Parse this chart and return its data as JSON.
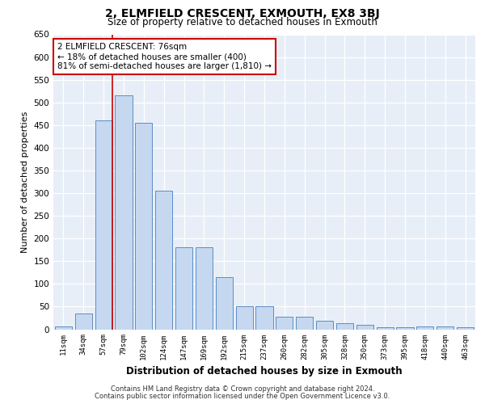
{
  "title": "2, ELMFIELD CRESCENT, EXMOUTH, EX8 3BJ",
  "subtitle": "Size of property relative to detached houses in Exmouth",
  "xlabel": "Distribution of detached houses by size in Exmouth",
  "ylabel": "Number of detached properties",
  "bar_color": "#c5d8f0",
  "bar_edge_color": "#5b8ec4",
  "background_color": "#e8eef7",
  "categories": [
    "11sqm",
    "34sqm",
    "57sqm",
    "79sqm",
    "102sqm",
    "124sqm",
    "147sqm",
    "169sqm",
    "192sqm",
    "215sqm",
    "237sqm",
    "260sqm",
    "282sqm",
    "305sqm",
    "328sqm",
    "350sqm",
    "373sqm",
    "395sqm",
    "418sqm",
    "440sqm",
    "463sqm"
  ],
  "values": [
    7,
    35,
    460,
    515,
    455,
    305,
    180,
    180,
    115,
    50,
    50,
    27,
    27,
    18,
    13,
    9,
    4,
    4,
    7,
    7,
    4
  ],
  "annotation_text": "2 ELMFIELD CRESCENT: 76sqm\n← 18% of detached houses are smaller (400)\n81% of semi-detached houses are larger (1,810) →",
  "annotation_box_color": "#ffffff",
  "annotation_box_edge": "#cc0000",
  "vline_color": "#cc0000",
  "vline_pos": 2.42,
  "ylim": [
    0,
    650
  ],
  "yticks": [
    0,
    50,
    100,
    150,
    200,
    250,
    300,
    350,
    400,
    450,
    500,
    550,
    600,
    650
  ],
  "footer_line1": "Contains HM Land Registry data © Crown copyright and database right 2024.",
  "footer_line2": "Contains public sector information licensed under the Open Government Licence v3.0."
}
